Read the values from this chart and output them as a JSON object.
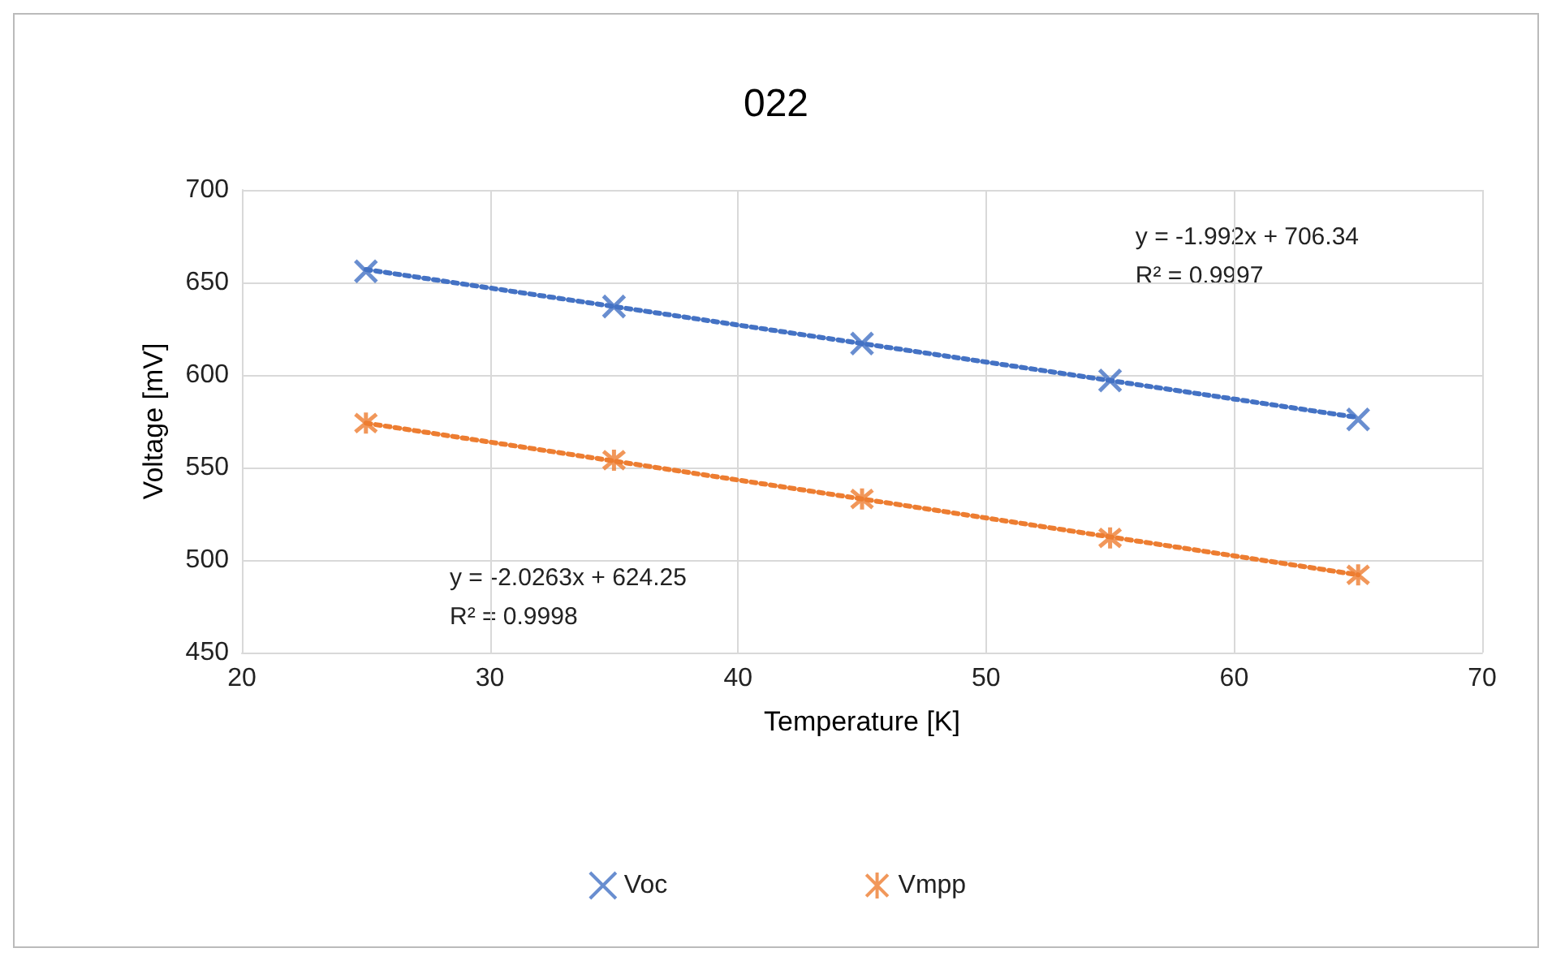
{
  "chart_data": {
    "type": "scatter",
    "title": "022",
    "xlabel": "Temperature [K]",
    "ylabel": "Voltage [mV]",
    "xlim": [
      20,
      70
    ],
    "xticks": [
      20,
      30,
      40,
      50,
      60,
      70
    ],
    "ylim": [
      450,
      700
    ],
    "yticks": [
      450,
      500,
      550,
      600,
      650,
      700
    ],
    "grid": true,
    "legend": "bottom",
    "series": [
      {
        "name": "Voc",
        "marker": "cross",
        "color": "#4472c4",
        "x": [
          25,
          35,
          45,
          55,
          65
        ],
        "values": [
          656,
          637,
          617,
          597,
          576
        ]
      },
      {
        "name": "Vmpp",
        "marker": "cross",
        "color": "#ed7d31",
        "x": [
          25,
          35,
          45,
          55,
          65
        ],
        "values": [
          574,
          554,
          533,
          512,
          492
        ]
      },
      {
        "type": "line",
        "line_style": "dotted",
        "marker": "none",
        "color": "#4472c4",
        "x": [
          25,
          65
        ],
        "values": [
          657,
          577
        ]
      },
      {
        "type": "line",
        "line_style": "dotted",
        "marker": "none",
        "color": "#ed7d31",
        "x": [
          25,
          65
        ],
        "values": [
          574,
          492
        ]
      }
    ],
    "annotations": [
      "y = -1.992x + 706.34\nR² = 0.9997",
      "y = -2.0263x + 624.25\nR² = 0.9998"
    ]
  }
}
